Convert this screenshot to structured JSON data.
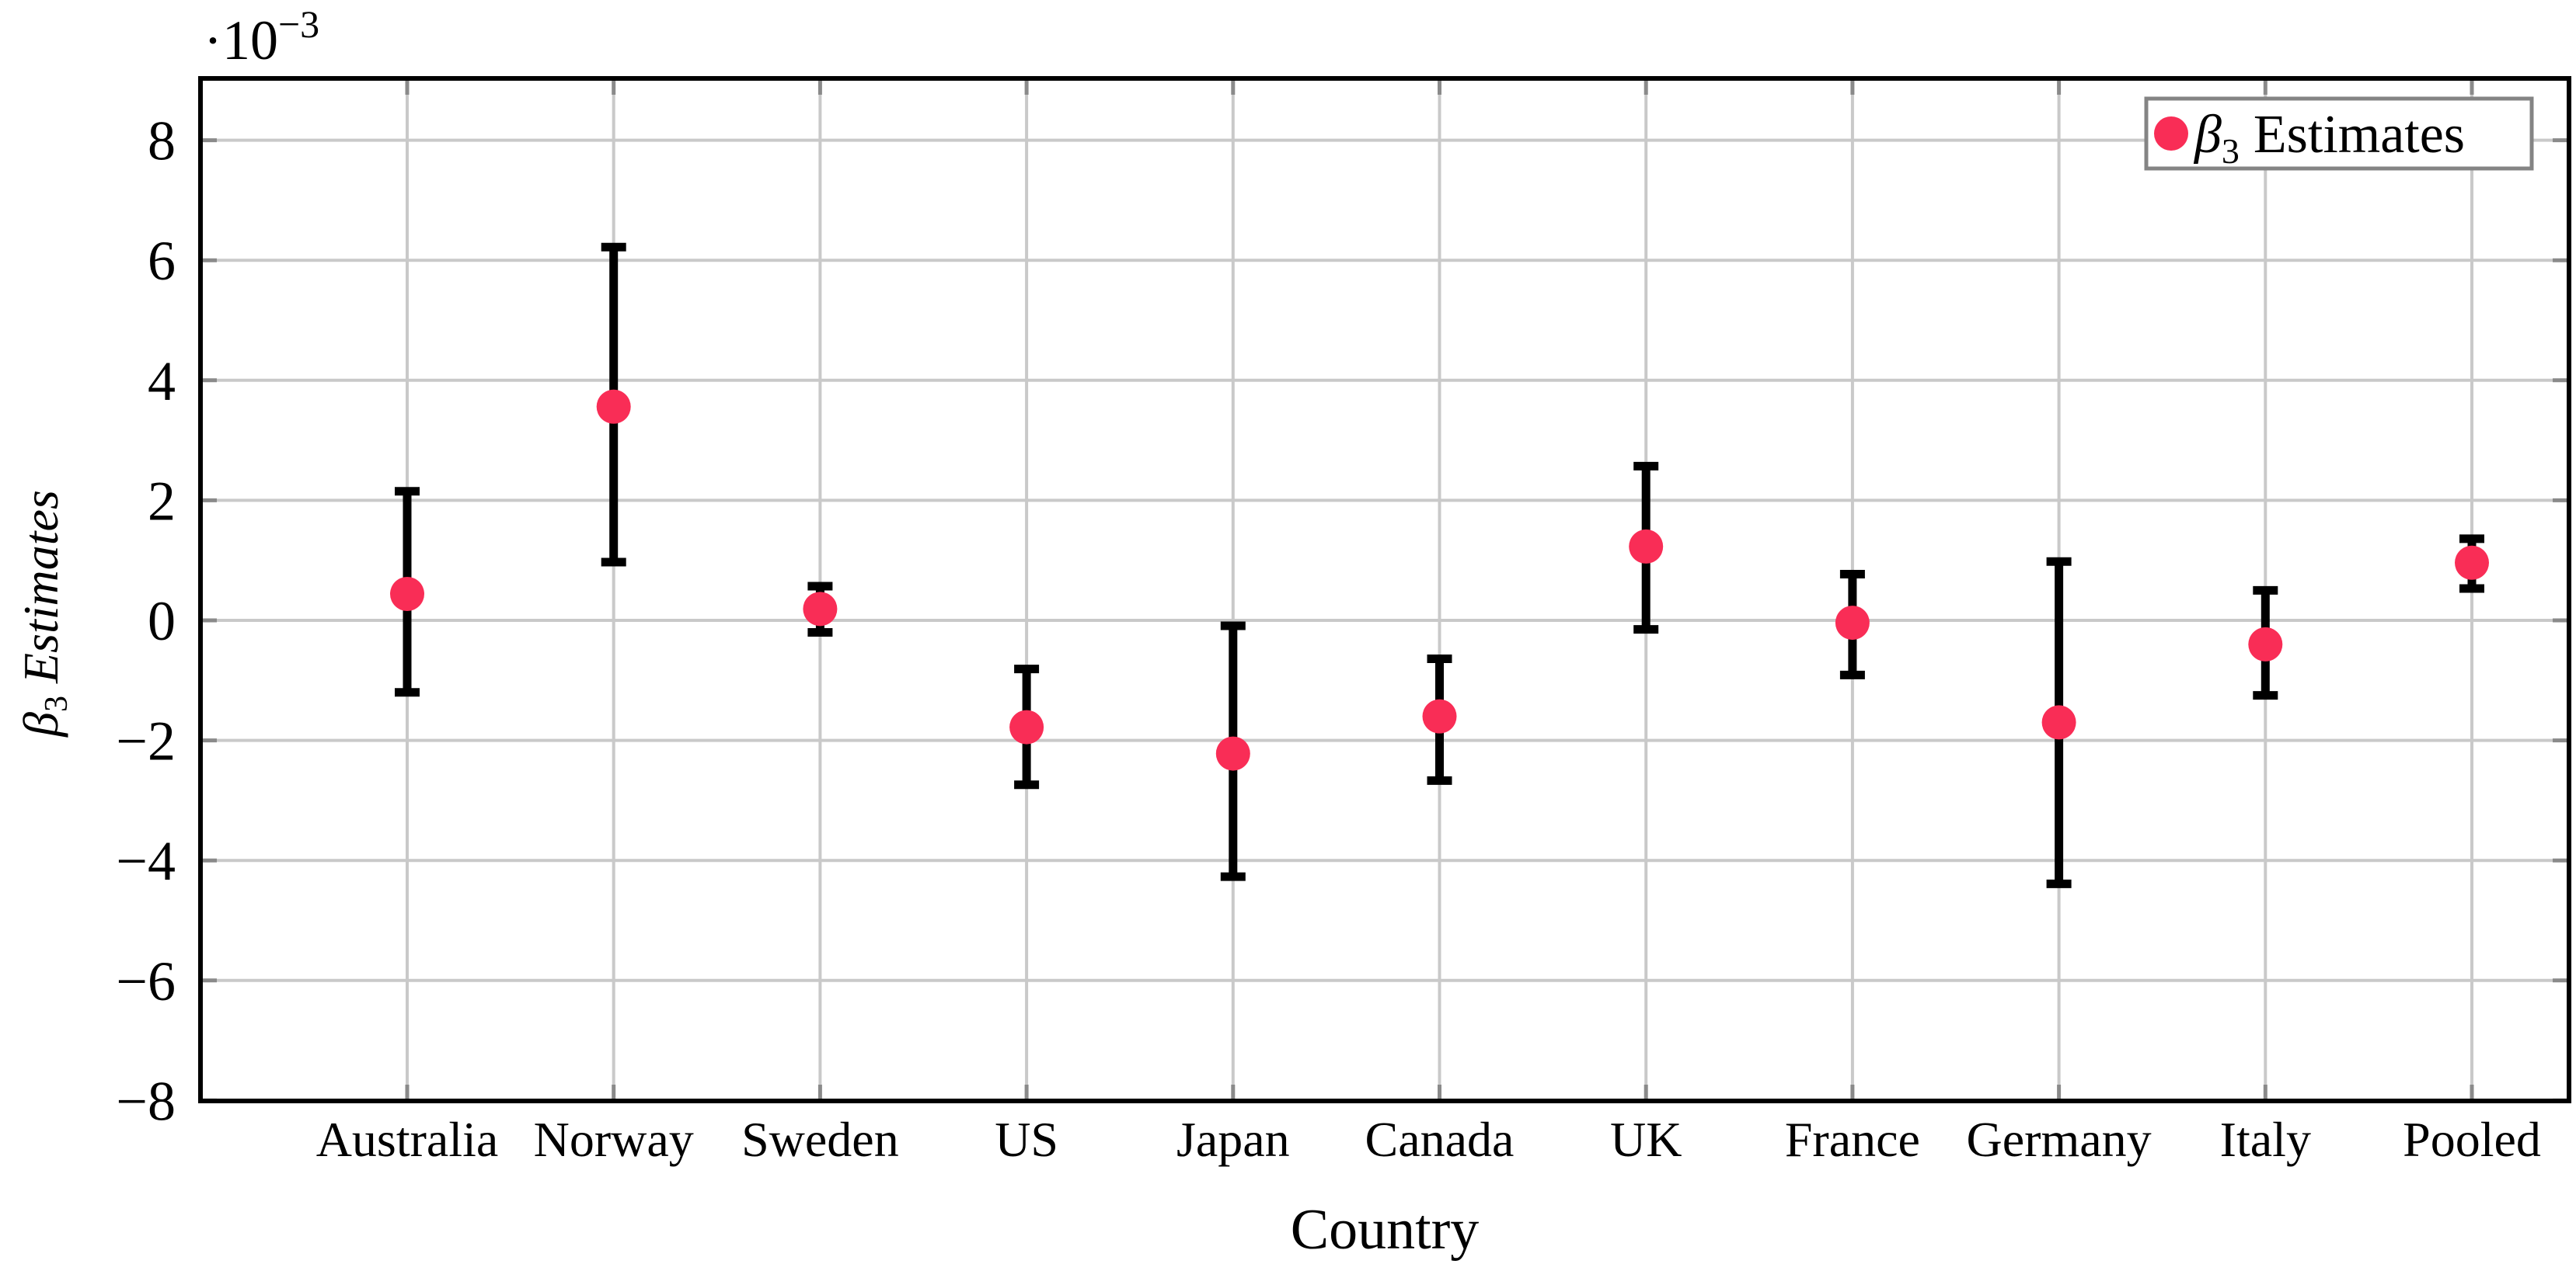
{
  "figure": {
    "background": "#ffffff",
    "y_axis_multiplier": {
      "base": "·10",
      "exponent": "−3"
    },
    "y_label": {
      "beta": "β",
      "subscript": "3",
      "rest": "Estimates"
    },
    "x_label": "Country",
    "legend": {
      "beta": "β",
      "subscript": "3",
      "rest": "Estimates"
    }
  },
  "chart_data": {
    "type": "scatter",
    "title": "",
    "xlabel": "Country",
    "ylabel": "β₃ Estimates",
    "unit_note": "y values are in units of 10⁻³ (axis multiplier ·10⁻³ shown at top left)",
    "categories": [
      "Australia",
      "Norway",
      "Sweden",
      "US",
      "Japan",
      "Canada",
      "UK",
      "France",
      "Germany",
      "Italy",
      "Pooled"
    ],
    "series": [
      {
        "name": "β₃ Estimates",
        "marker": "filled-circle",
        "marker_color": "#f92d56",
        "values_e3": [
          0.44,
          3.56,
          0.19,
          -1.78,
          -2.22,
          -1.6,
          1.23,
          -0.04,
          -1.7,
          -0.4,
          0.96
        ],
        "ci_low_e3": [
          -1.2,
          0.97,
          -0.2,
          -2.74,
          -4.27,
          -2.67,
          -0.15,
          -0.91,
          -4.39,
          -1.25,
          0.53
        ],
        "ci_high_e3": [
          2.15,
          6.22,
          0.57,
          -0.81,
          -0.09,
          -0.64,
          2.57,
          0.77,
          0.98,
          0.5,
          1.36
        ]
      }
    ],
    "error_bars": true,
    "y_ticks_e3": [
      -8,
      -6,
      -4,
      -2,
      0,
      2,
      4,
      6,
      8
    ],
    "ylim_e3": [
      -8,
      9
    ],
    "grid": true,
    "legend_position": "top-right",
    "colors": {
      "errorbar": "#000000",
      "grid": "#c9c9c9",
      "tick": "#8a8a8a",
      "axis_border": "#000000",
      "legend_border": "#848484",
      "background": "#ffffff"
    }
  }
}
